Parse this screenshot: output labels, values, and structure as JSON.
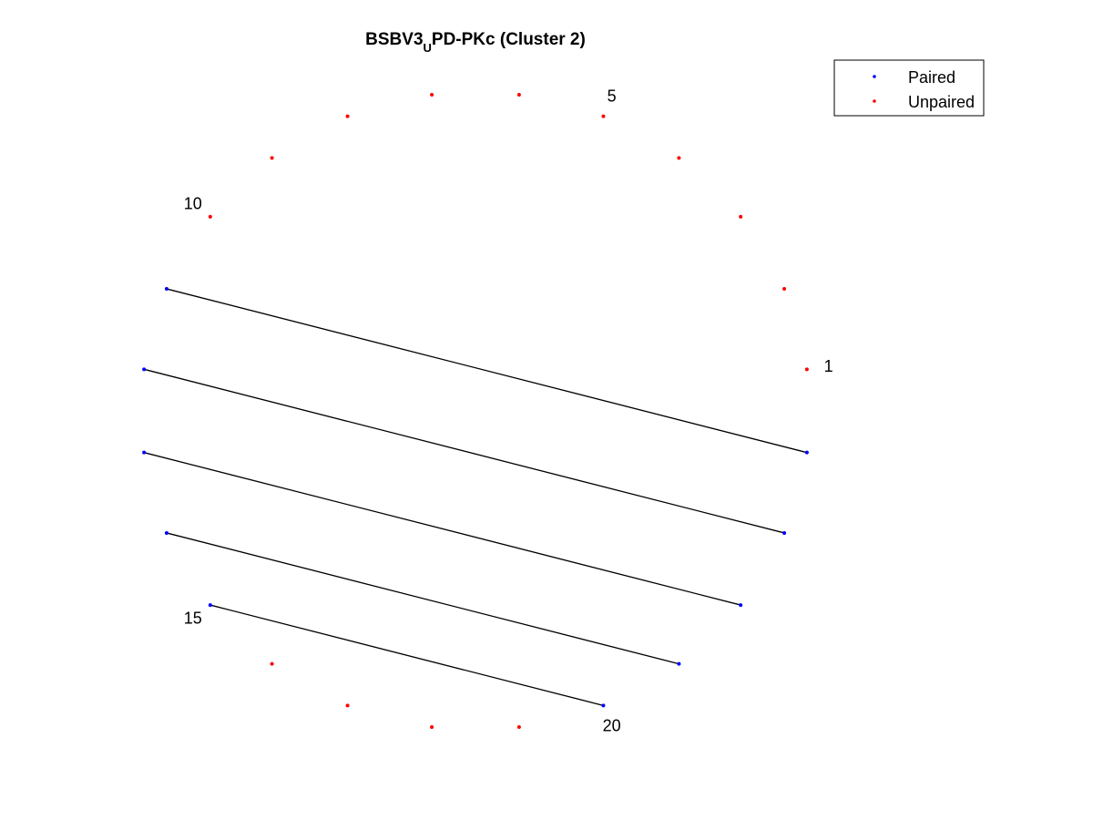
{
  "chart_data": {
    "type": "scatter",
    "title": {
      "prefix": "BSBV3",
      "subscript": "U",
      "suffix": "PD-PKc (Cluster 2)"
    },
    "xlabel": "",
    "ylabel": "",
    "grid": false,
    "axes_visible": false,
    "legend": {
      "position": "top-right",
      "entries": [
        {
          "name": "Paired",
          "color": "#0000ff"
        },
        {
          "name": "Unpaired",
          "color": "#ff0000"
        }
      ]
    },
    "n_positions": 24,
    "first_position_angle_deg": 7.5,
    "angle_step_deg": 15,
    "paired_indices": [
      11,
      12,
      13,
      14,
      15,
      20,
      21,
      22,
      23,
      24
    ],
    "pairs": [
      [
        11,
        24
      ],
      [
        12,
        23
      ],
      [
        13,
        22
      ],
      [
        14,
        21
      ],
      [
        15,
        20
      ]
    ],
    "position_labels": [
      "1",
      "5",
      "10",
      "15",
      "20"
    ],
    "colors": {
      "paired": "#0000ff",
      "unpaired": "#ff0000",
      "link": "#000000"
    }
  }
}
